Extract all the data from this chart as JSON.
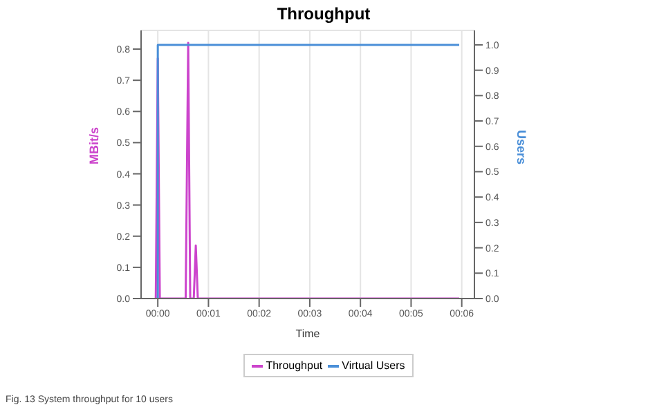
{
  "chart_data": {
    "type": "line",
    "title": "Throughput",
    "xlabel": "Time",
    "ylabel": "MBit/s",
    "y2label": "Users",
    "series": [
      {
        "name": "Throughput",
        "color": "#cc44cc",
        "x": [
          -0.04,
          0,
          0.04,
          0.55,
          0.6,
          0.64,
          0.71,
          0.75,
          0.79,
          5.95
        ],
        "values": [
          0,
          0.77,
          0,
          0,
          0.82,
          0,
          0,
          0.17,
          0,
          0
        ]
      },
      {
        "name": "Virtual Users",
        "color": "#4a8fd8",
        "axis": "y2",
        "x": [
          0,
          0,
          5.95
        ],
        "values": [
          0,
          1,
          1
        ]
      }
    ],
    "xlim": [
      -0.33,
      6.25
    ],
    "xticks": [
      {
        "value": 0,
        "label": "00:00"
      },
      {
        "value": 1,
        "label": "00:01"
      },
      {
        "value": 2,
        "label": "00:02"
      },
      {
        "value": 3,
        "label": "00:03"
      },
      {
        "value": 4,
        "label": "00:04"
      },
      {
        "value": 5,
        "label": "00:05"
      },
      {
        "value": 6,
        "label": "00:06"
      }
    ],
    "ylim": [
      0,
      0.86
    ],
    "yticks": [
      {
        "value": 0,
        "label": "0.0"
      },
      0.1,
      0.2,
      0.3,
      0.4,
      0.5,
      0.6,
      0.7,
      0.8
    ],
    "y2lim": [
      0,
      1.057
    ],
    "y2ticks": [
      {
        "value": 0,
        "label": "0.0"
      },
      0.1,
      0.2,
      0.3,
      0.4,
      0.5,
      0.6,
      0.7,
      0.8,
      0.9,
      {
        "value": 1,
        "label": "1.0"
      }
    ],
    "grid": true,
    "legend": "bottom",
    "annotations": [
      "Fig. 13 System throughput for 10 users"
    ]
  }
}
